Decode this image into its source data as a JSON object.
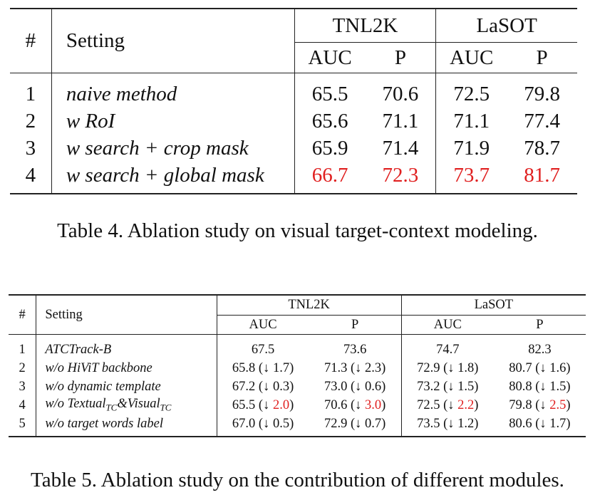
{
  "table4": {
    "headers": {
      "num": "#",
      "setting": "Setting",
      "group1": "TNL2K",
      "group2": "LaSOT",
      "auc": "AUC",
      "p": "P"
    },
    "rows": [
      {
        "num": "1",
        "setting": "naive method",
        "v1": "65.5",
        "v2": "70.6",
        "v3": "72.5",
        "v4": "79.8"
      },
      {
        "num": "2",
        "setting": "w RoI",
        "v1": "65.6",
        "v2": "71.1",
        "v3": "71.1",
        "v4": "77.4"
      },
      {
        "num": "3",
        "setting": "w search + crop mask",
        "v1": "65.9",
        "v2": "71.4",
        "v3": "71.9",
        "v4": "78.7"
      },
      {
        "num": "4",
        "setting": "w search + global mask",
        "v1": "66.7",
        "v2": "72.3",
        "v3": "73.7",
        "v4": "81.7"
      }
    ],
    "caption": "Table 4. Ablation study on visual target-context modeling."
  },
  "table5": {
    "headers": {
      "num": "#",
      "setting": "Setting",
      "group1": "TNL2K",
      "group2": "LaSOT",
      "auc": "AUC",
      "p": "P"
    },
    "rows": [
      {
        "num": "1",
        "setting": "ATCTrack-B",
        "v1": "67.5",
        "v2": "73.6",
        "v3": "74.7",
        "v4": "82.3"
      },
      {
        "num": "2",
        "setting": "w/o HiViT backbone",
        "v1": "65.8",
        "d1": "1.7",
        "v2": "71.3",
        "d2": "2.3",
        "v3": "72.9",
        "d3": "1.8",
        "v4": "80.7",
        "d4": "1.6"
      },
      {
        "num": "3",
        "setting": "w/o dynamic template",
        "v1": "67.2",
        "d1": "0.3",
        "v2": "73.0",
        "d2": "0.6",
        "v3": "73.2",
        "d3": "1.5",
        "v4": "80.8",
        "d4": "1.5"
      },
      {
        "num": "4",
        "setting_a": "w/o Textual",
        "setting_sub": "TC",
        "setting_b": "&Visual",
        "v1": "65.5",
        "d1": "2.0",
        "v2": "70.6",
        "d2": "3.0",
        "v3": "72.5",
        "d3": "2.2",
        "v4": "79.8",
        "d4": "2.5"
      },
      {
        "num": "5",
        "setting": "w/o target words label",
        "v1": "67.0",
        "d1": "0.5",
        "v2": "72.9",
        "d2": "0.7",
        "v3": "73.5",
        "d3": "1.2",
        "v4": "80.6",
        "d4": "1.7"
      }
    ],
    "arrow": "↓",
    "caption": "Table 5. Ablation study on the contribution of different modules."
  }
}
